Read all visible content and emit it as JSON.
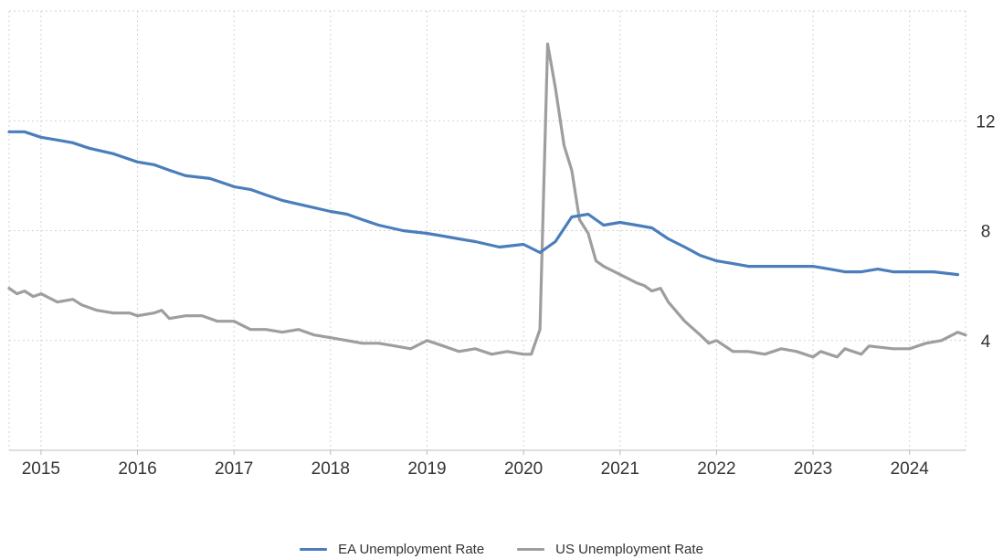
{
  "chart_data": {
    "type": "line",
    "title": "",
    "xlabel": "",
    "ylabel": "",
    "x_ticks": [
      "2015",
      "2016",
      "2017",
      "2018",
      "2019",
      "2020",
      "2021",
      "2022",
      "2023",
      "2024"
    ],
    "y_ticks": [
      "4",
      "8",
      "12"
    ],
    "xlim": [
      2014.67,
      2024.58
    ],
    "ylim": [
      0,
      16
    ],
    "y_axis_position": "right",
    "grid": true,
    "legend_position": "bottom",
    "series": [
      {
        "name": "EA Unemployment Rate",
        "color": "#4a7ebb",
        "points": [
          [
            2014.67,
            11.6
          ],
          [
            2014.83,
            11.6
          ],
          [
            2015.0,
            11.4
          ],
          [
            2015.17,
            11.3
          ],
          [
            2015.33,
            11.2
          ],
          [
            2015.5,
            11.0
          ],
          [
            2015.75,
            10.8
          ],
          [
            2016.0,
            10.5
          ],
          [
            2016.17,
            10.4
          ],
          [
            2016.33,
            10.2
          ],
          [
            2016.5,
            10.0
          ],
          [
            2016.75,
            9.9
          ],
          [
            2017.0,
            9.6
          ],
          [
            2017.17,
            9.5
          ],
          [
            2017.33,
            9.3
          ],
          [
            2017.5,
            9.1
          ],
          [
            2017.75,
            8.9
          ],
          [
            2018.0,
            8.7
          ],
          [
            2018.17,
            8.6
          ],
          [
            2018.33,
            8.4
          ],
          [
            2018.5,
            8.2
          ],
          [
            2018.75,
            8.0
          ],
          [
            2019.0,
            7.9
          ],
          [
            2019.17,
            7.8
          ],
          [
            2019.33,
            7.7
          ],
          [
            2019.5,
            7.6
          ],
          [
            2019.75,
            7.4
          ],
          [
            2020.0,
            7.5
          ],
          [
            2020.17,
            7.2
          ],
          [
            2020.33,
            7.6
          ],
          [
            2020.5,
            8.5
          ],
          [
            2020.67,
            8.6
          ],
          [
            2020.83,
            8.2
          ],
          [
            2021.0,
            8.3
          ],
          [
            2021.17,
            8.2
          ],
          [
            2021.33,
            8.1
          ],
          [
            2021.5,
            7.7
          ],
          [
            2021.67,
            7.4
          ],
          [
            2021.83,
            7.1
          ],
          [
            2022.0,
            6.9
          ],
          [
            2022.17,
            6.8
          ],
          [
            2022.33,
            6.7
          ],
          [
            2022.5,
            6.7
          ],
          [
            2022.75,
            6.7
          ],
          [
            2023.0,
            6.7
          ],
          [
            2023.17,
            6.6
          ],
          [
            2023.33,
            6.5
          ],
          [
            2023.5,
            6.5
          ],
          [
            2023.67,
            6.6
          ],
          [
            2023.83,
            6.5
          ],
          [
            2024.0,
            6.5
          ],
          [
            2024.25,
            6.5
          ],
          [
            2024.5,
            6.4
          ]
        ]
      },
      {
        "name": "US Unemployment Rate",
        "color": "#9e9e9e",
        "points": [
          [
            2014.67,
            5.9
          ],
          [
            2014.75,
            5.7
          ],
          [
            2014.83,
            5.8
          ],
          [
            2014.92,
            5.6
          ],
          [
            2015.0,
            5.7
          ],
          [
            2015.17,
            5.4
          ],
          [
            2015.33,
            5.5
          ],
          [
            2015.42,
            5.3
          ],
          [
            2015.58,
            5.1
          ],
          [
            2015.75,
            5.0
          ],
          [
            2015.92,
            5.0
          ],
          [
            2016.0,
            4.9
          ],
          [
            2016.17,
            5.0
          ],
          [
            2016.25,
            5.1
          ],
          [
            2016.33,
            4.8
          ],
          [
            2016.5,
            4.9
          ],
          [
            2016.67,
            4.9
          ],
          [
            2016.83,
            4.7
          ],
          [
            2017.0,
            4.7
          ],
          [
            2017.17,
            4.4
          ],
          [
            2017.33,
            4.4
          ],
          [
            2017.5,
            4.3
          ],
          [
            2017.67,
            4.4
          ],
          [
            2017.83,
            4.2
          ],
          [
            2018.0,
            4.1
          ],
          [
            2018.17,
            4.0
          ],
          [
            2018.33,
            3.9
          ],
          [
            2018.5,
            3.9
          ],
          [
            2018.67,
            3.8
          ],
          [
            2018.83,
            3.7
          ],
          [
            2019.0,
            4.0
          ],
          [
            2019.17,
            3.8
          ],
          [
            2019.33,
            3.6
          ],
          [
            2019.5,
            3.7
          ],
          [
            2019.67,
            3.5
          ],
          [
            2019.83,
            3.6
          ],
          [
            2020.0,
            3.5
          ],
          [
            2020.08,
            3.5
          ],
          [
            2020.17,
            4.4
          ],
          [
            2020.25,
            14.8
          ],
          [
            2020.33,
            13.2
          ],
          [
            2020.42,
            11.1
          ],
          [
            2020.5,
            10.2
          ],
          [
            2020.58,
            8.4
          ],
          [
            2020.67,
            7.9
          ],
          [
            2020.75,
            6.9
          ],
          [
            2020.83,
            6.7
          ],
          [
            2021.0,
            6.4
          ],
          [
            2021.17,
            6.1
          ],
          [
            2021.25,
            6.0
          ],
          [
            2021.33,
            5.8
          ],
          [
            2021.42,
            5.9
          ],
          [
            2021.5,
            5.4
          ],
          [
            2021.67,
            4.7
          ],
          [
            2021.83,
            4.2
          ],
          [
            2021.92,
            3.9
          ],
          [
            2022.0,
            4.0
          ],
          [
            2022.17,
            3.6
          ],
          [
            2022.33,
            3.6
          ],
          [
            2022.5,
            3.5
          ],
          [
            2022.67,
            3.7
          ],
          [
            2022.83,
            3.6
          ],
          [
            2023.0,
            3.4
          ],
          [
            2023.08,
            3.6
          ],
          [
            2023.25,
            3.4
          ],
          [
            2023.33,
            3.7
          ],
          [
            2023.5,
            3.5
          ],
          [
            2023.58,
            3.8
          ],
          [
            2023.83,
            3.7
          ],
          [
            2024.0,
            3.7
          ],
          [
            2024.17,
            3.9
          ],
          [
            2024.33,
            4.0
          ],
          [
            2024.5,
            4.3
          ],
          [
            2024.58,
            4.2
          ]
        ]
      }
    ]
  }
}
